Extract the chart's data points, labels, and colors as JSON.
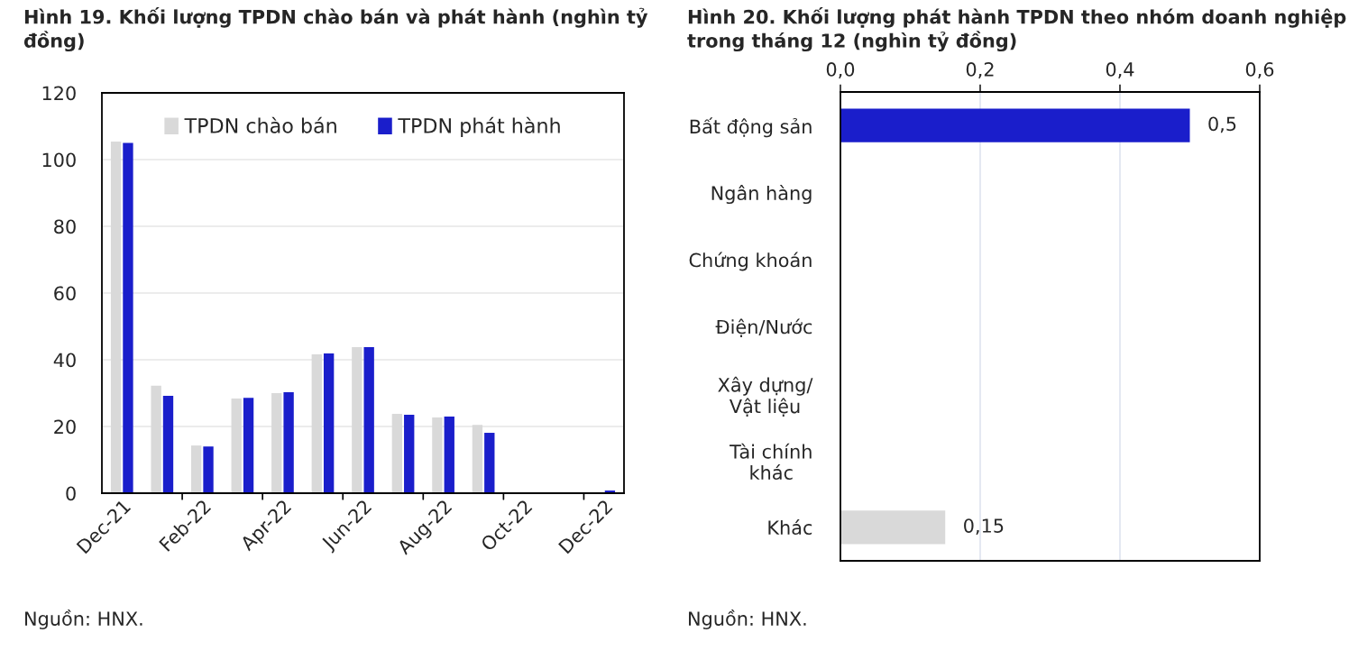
{
  "chart_data": [
    {
      "type": "bar",
      "title": "Hình 19. Khối lượng TPDN chào bán và phát hành (nghìn tỷ đồng)",
      "categories": [
        "Dec-21",
        null,
        "Feb-22",
        null,
        "Apr-22",
        null,
        "Jun-22",
        null,
        "Aug-22",
        null,
        "Oct-22",
        null,
        "Dec-22"
      ],
      "series": [
        {
          "name": "TPDN chào bán",
          "color": "#d9d9d9",
          "values": [
            105.4,
            32.2,
            14.3,
            28.4,
            30.0,
            41.6,
            43.8,
            23.8,
            22.7,
            20.5,
            null,
            null,
            null
          ]
        },
        {
          "name": "TPDN phát hành",
          "color": "#1a1ecb",
          "values": [
            105.0,
            29.2,
            14.0,
            28.6,
            30.3,
            41.9,
            43.8,
            23.5,
            23.0,
            18.1,
            null,
            null,
            0.8
          ]
        }
      ],
      "ylim": [
        0,
        120
      ],
      "yticks": [
        0,
        20,
        40,
        60,
        80,
        100,
        120
      ],
      "grid": "y",
      "legend": "top",
      "annotations": [
        "Nguồn: HNX."
      ]
    },
    {
      "type": "bar",
      "orientation": "horizontal",
      "title": "Hình 20. Khối lượng phát hành TPDN theo nhóm doanh nghiệp trong tháng 12 (nghìn tỷ đồng)",
      "categories": [
        "Bất động sản",
        "Ngân hàng",
        "Chứng khoán",
        "Điện/Nước",
        "Xây dựng/\nVật liệu",
        "Tài chính\nkhác",
        "Khác"
      ],
      "values": [
        0.5,
        null,
        null,
        null,
        null,
        null,
        0.15
      ],
      "colors": [
        "#1a1ecb",
        null,
        null,
        null,
        null,
        null,
        "#d9d9d9"
      ],
      "value_labels": [
        "0,5",
        null,
        null,
        null,
        null,
        null,
        "0,15"
      ],
      "xlim": [
        0,
        0.6
      ],
      "xticks": [
        {
          "value": 0,
          "label": "0,0"
        },
        {
          "value": 0.2,
          "label": "0,2"
        },
        {
          "value": 0.4,
          "label": "0,4"
        },
        {
          "value": 0.6,
          "label": "0,6"
        }
      ],
      "grid": "x",
      "annotations": [
        "Nguồn: HNX."
      ]
    }
  ]
}
